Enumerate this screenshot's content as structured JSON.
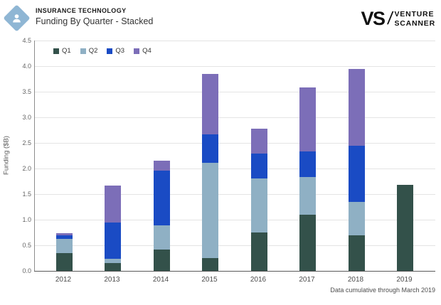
{
  "header": {
    "category": "INSURANCE TECHNOLOGY",
    "title": "Funding By Quarter - Stacked",
    "icon_color": "#8fb6d4"
  },
  "logo": {
    "vs": "VS",
    "slash": "/",
    "line1": "VENTURE",
    "line2": "SCANNER"
  },
  "footnote": "Data cumulative through March 2019",
  "chart_data": {
    "type": "bar",
    "stacked": true,
    "title": "Funding By Quarter - Stacked",
    "categories": [
      "2012",
      "2013",
      "2014",
      "2015",
      "2016",
      "2017",
      "2018",
      "2019"
    ],
    "series": [
      {
        "name": "Q1",
        "color": "#33514a",
        "values": [
          0.35,
          0.15,
          0.41,
          0.25,
          0.75,
          1.1,
          0.7,
          1.68
        ]
      },
      {
        "name": "Q2",
        "color": "#8fb0c4",
        "values": [
          0.28,
          0.08,
          0.48,
          1.86,
          1.06,
          0.73,
          0.65,
          0
        ]
      },
      {
        "name": "Q3",
        "color": "#1a4bc4",
        "values": [
          0.06,
          0.71,
          1.07,
          0.55,
          0.48,
          0.51,
          1.1,
          0
        ]
      },
      {
        "name": "Q4",
        "color": "#7c6eb8",
        "values": [
          0.05,
          0.72,
          0.19,
          1.19,
          0.49,
          1.24,
          1.5,
          0
        ]
      }
    ],
    "totals": [
      0.74,
      1.66,
      2.15,
      3.85,
      2.78,
      3.58,
      3.95,
      1.68
    ],
    "xlabel": "",
    "ylabel": "Funding ($B)",
    "ylim": [
      0,
      4.5
    ],
    "ytick_step": 0.5,
    "yticks": [
      "0.0",
      "0.5",
      "1.0",
      "1.5",
      "2.0",
      "2.5",
      "3.0",
      "3.5",
      "4.0",
      "4.5"
    ],
    "grid": true,
    "legend_position": "top-left"
  }
}
